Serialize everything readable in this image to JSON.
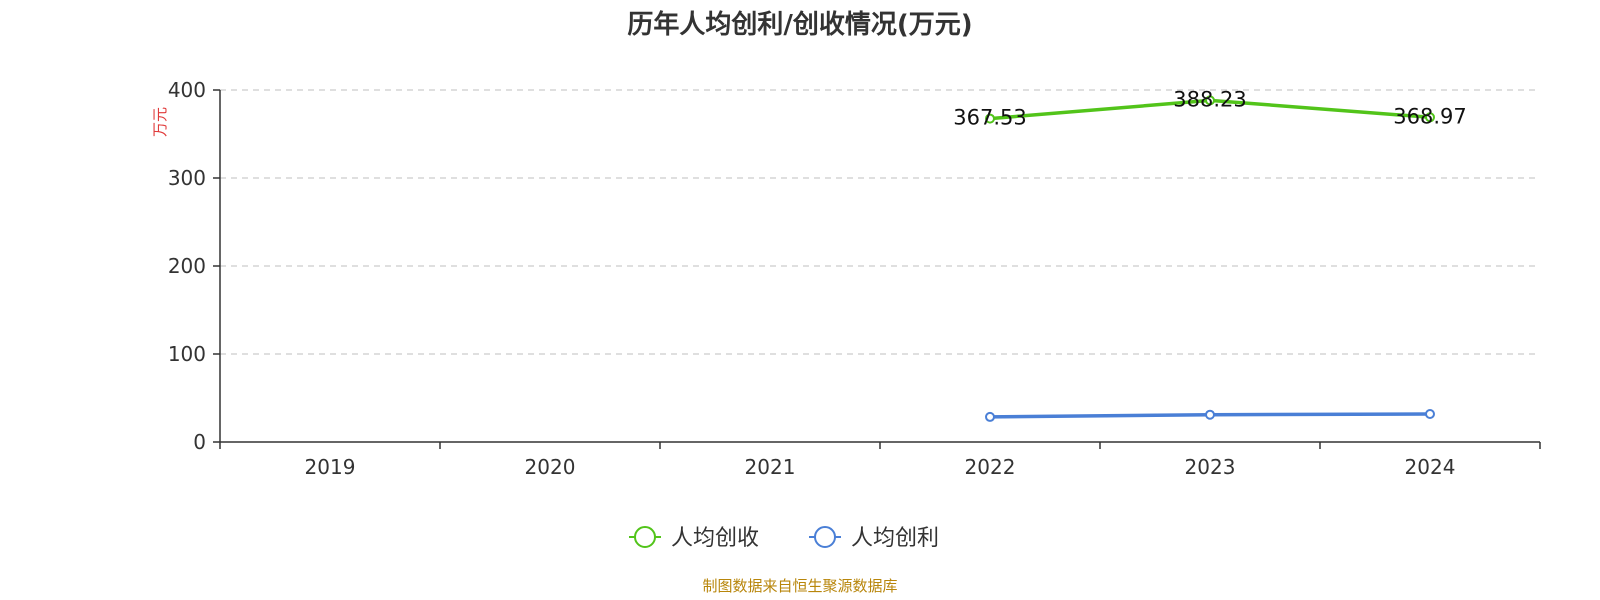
{
  "chart_data": {
    "type": "line",
    "title": "历年人均创利/创收情况(万元)",
    "ylabel": "万元",
    "xlabel": "",
    "categories": [
      "2019",
      "2020",
      "2021",
      "2022",
      "2023",
      "2024"
    ],
    "ylim": [
      0,
      400
    ],
    "yticks": [
      0,
      100,
      200,
      300,
      400
    ],
    "grid": true,
    "legend_position": "bottom",
    "series": [
      {
        "name": "人均创收",
        "color": "#52c41a",
        "values": [
          null,
          null,
          null,
          367.53,
          388.23,
          368.97
        ],
        "labels": [
          "",
          "",
          "",
          "367.53",
          "388.23",
          "368.97"
        ]
      },
      {
        "name": "人均创利",
        "color": "#4a7fd6",
        "values": [
          null,
          null,
          null,
          28.5,
          31.0,
          31.8
        ],
        "labels": [
          "",
          "",
          "",
          "",
          "",
          ""
        ]
      }
    ],
    "source": "制图数据来自恒生聚源数据库"
  }
}
